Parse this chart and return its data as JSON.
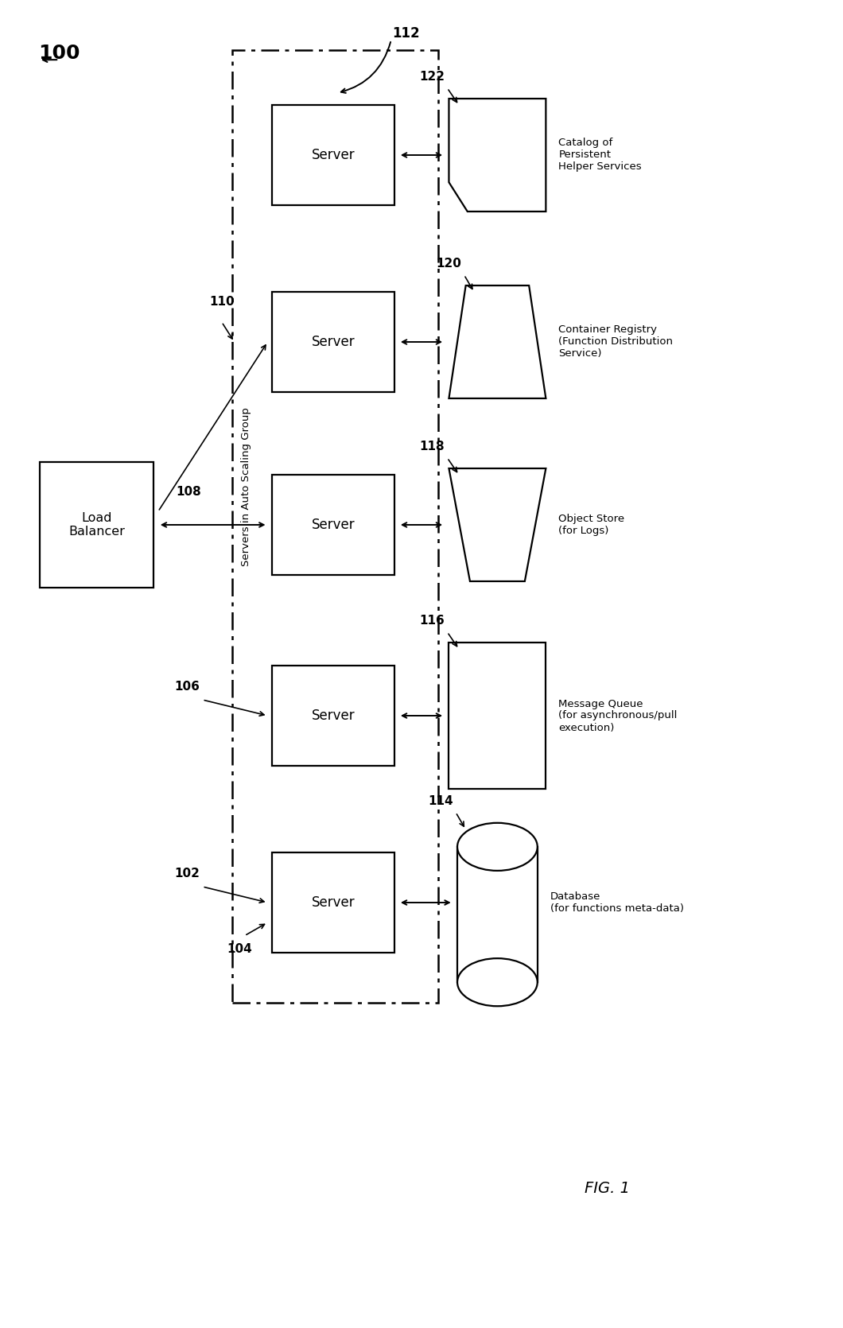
{
  "fig_width": 10.6,
  "fig_height": 16.7,
  "bg_color": "#ffffff",
  "title": "FIG. 1",
  "ref_100": "100",
  "server_label": "Server",
  "lb_label": "Load\nBalancer",
  "servers_group_label": "Servers in Auto Scaling Group",
  "db_label": "Database\n(for functions meta-data)",
  "mq_label": "Message Queue\n(for asynchronous/pull\nexecution)",
  "os_label": "Object Store\n(for Logs)",
  "cr_label": "Container Registry\n(Function Distribution\nService)",
  "cat_label": "Catalog of\nPersistent\nHelper Services",
  "num_114": "114",
  "num_116": "116",
  "num_118": "118",
  "num_120": "120",
  "num_122": "122",
  "num_112": "112",
  "num_110": "110",
  "num_108": "108",
  "num_106": "106",
  "num_104": "104",
  "num_102": "102"
}
